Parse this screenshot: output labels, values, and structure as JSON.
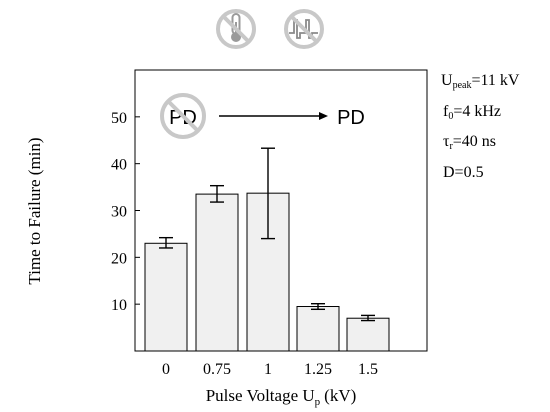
{
  "chart_data": {
    "type": "bar",
    "categories": [
      "0",
      "0.75",
      "1",
      "1.25",
      "1.5"
    ],
    "values": [
      23,
      33.5,
      33.7,
      9.5,
      7
    ],
    "error_low": [
      22.0,
      31.8,
      24.0,
      8.9,
      6.5
    ],
    "error_high": [
      24.2,
      35.3,
      43.3,
      10.1,
      7.6
    ],
    "ylabel": "Time to Failure (min)",
    "xlabel_main": "Pulse Voltage U",
    "xlabel_sub": "p",
    "xlabel_unit": "(kV)",
    "ylim": [
      0,
      60
    ],
    "yticks": [
      10,
      20,
      30,
      40,
      50
    ],
    "grid": false,
    "bar_color": "#f0f0f0",
    "edge_color": "#000000"
  },
  "params": {
    "upeak_base": "U",
    "upeak_sub": "peak",
    "upeak_val": "=11 kV",
    "f0_base": "f",
    "f0_sub": "0",
    "f0_val": "=4 kHz",
    "tau_base": "τ",
    "tau_sub": "r",
    "tau_val": "=40 ns",
    "duty": "D=0.5"
  },
  "annotation": {
    "pd_crossed": "PD",
    "pd_plain": "PD"
  },
  "icons": [
    "no-temperature-icon",
    "no-pulse-waveform-icon"
  ],
  "colors": {
    "prohibition": "#c8c8c8",
    "axis": "#000000"
  }
}
